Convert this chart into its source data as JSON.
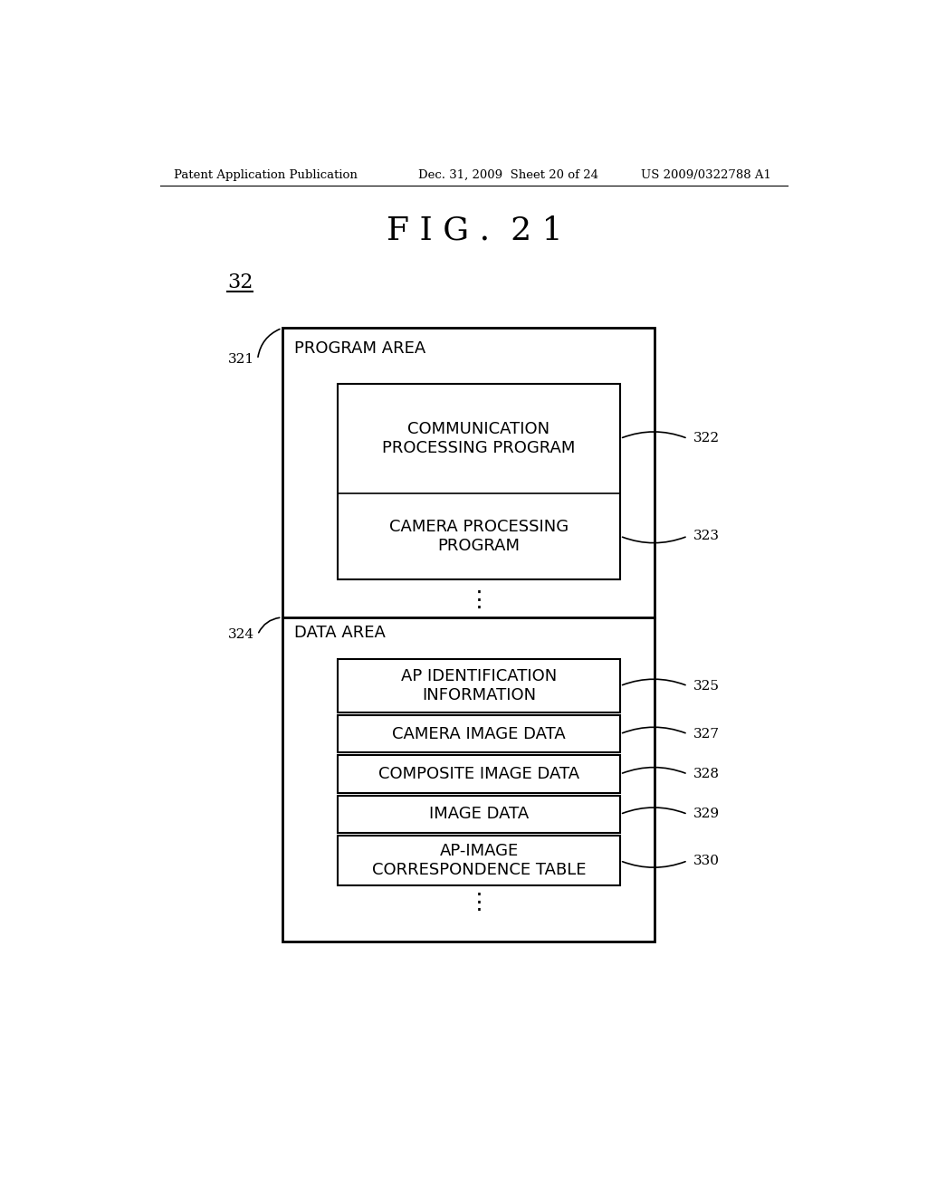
{
  "fig_title": "F I G .  2 1",
  "header_left": "Patent Application Publication",
  "header_mid": "Dec. 31, 2009  Sheet 20 of 24",
  "header_right": "US 2009/0322788 A1",
  "label_32": "32",
  "label_321": "321",
  "label_322": "322",
  "label_323": "323",
  "label_324": "324",
  "label_325": "325",
  "label_327": "327",
  "label_328": "328",
  "label_329": "329",
  "label_330": "330",
  "program_area_label": "PROGRAM AREA",
  "comm_prog_label": "COMMUNICATION\nPROCESSING PROGRAM",
  "camera_prog_label": "CAMERA PROCESSING\nPROGRAM",
  "data_area_label": "DATA AREA",
  "ap_id_label": "AP IDENTIFICATION\nINFORMATION",
  "camera_image_label": "CAMERA IMAGE DATA",
  "composite_image_label": "COMPOSITE IMAGE DATA",
  "image_data_label": "IMAGE DATA",
  "ap_image_label": "AP-IMAGE\nCORRESPONDENCE TABLE",
  "bg_color": "#ffffff",
  "text_color": "#000000",
  "line_color": "#000000"
}
